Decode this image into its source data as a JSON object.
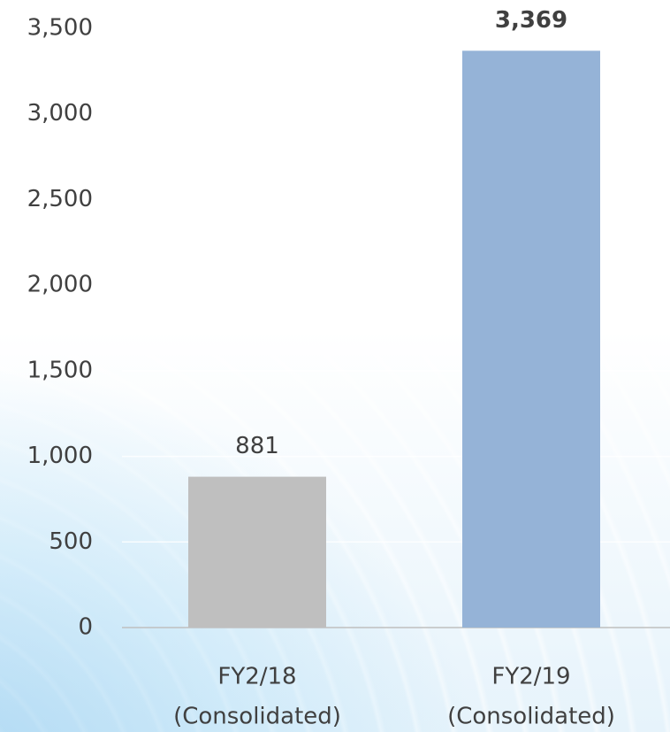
{
  "chart_data": {
    "type": "bar",
    "categories": [
      [
        "FY2/18",
        "(Consolidated)"
      ],
      [
        "FY2/19",
        "(Consolidated)"
      ]
    ],
    "values": [
      881,
      3369
    ],
    "value_labels": [
      "881",
      "3,369"
    ],
    "value_label_bold": [
      false,
      true
    ],
    "colors": [
      "#bfbfbf",
      "#95b3d7"
    ],
    "ylim": [
      0,
      3500
    ],
    "yticks": [
      0,
      500,
      {
        "value": 1000,
        "label": "1,000"
      },
      {
        "value": 1500,
        "label": "1,500"
      },
      {
        "value": 2000,
        "label": "2,000"
      },
      {
        "value": 2500,
        "label": "2,500"
      },
      {
        "value": 3000,
        "label": "3,000"
      },
      {
        "value": 3500,
        "label": "3,500"
      }
    ],
    "grid": true
  }
}
